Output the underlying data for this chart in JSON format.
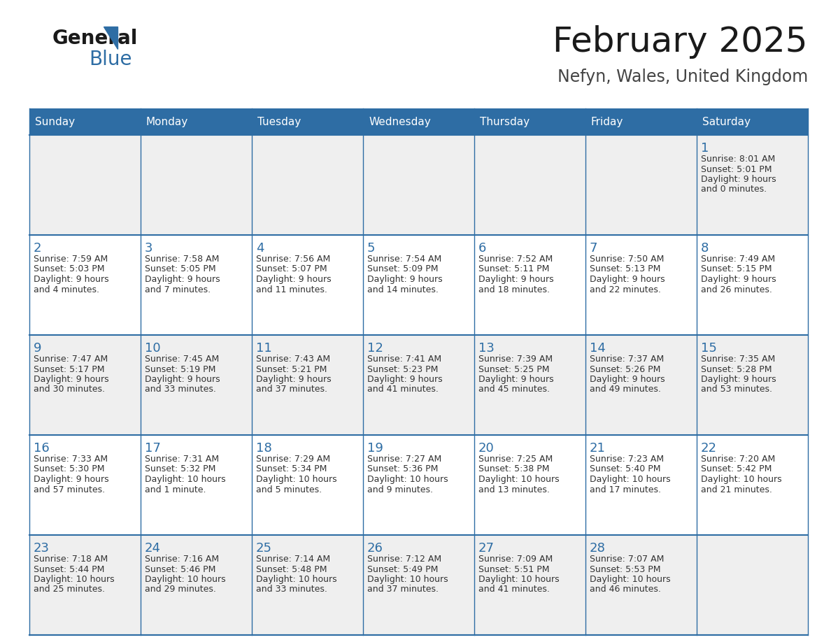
{
  "title": "February 2025",
  "subtitle": "Nefyn, Wales, United Kingdom",
  "header_color": "#2E6DA4",
  "header_text_color": "#FFFFFF",
  "row_bg_odd": "#EFEFEF",
  "row_bg_even": "#FFFFFF",
  "border_color": "#2E6DA4",
  "day_number_color": "#2E6DA4",
  "text_color": "#333333",
  "days_of_week": [
    "Sunday",
    "Monday",
    "Tuesday",
    "Wednesday",
    "Thursday",
    "Friday",
    "Saturday"
  ],
  "weeks": [
    [
      {
        "day": null,
        "sunrise": null,
        "sunset": null,
        "daylight": null
      },
      {
        "day": null,
        "sunrise": null,
        "sunset": null,
        "daylight": null
      },
      {
        "day": null,
        "sunrise": null,
        "sunset": null,
        "daylight": null
      },
      {
        "day": null,
        "sunrise": null,
        "sunset": null,
        "daylight": null
      },
      {
        "day": null,
        "sunrise": null,
        "sunset": null,
        "daylight": null
      },
      {
        "day": null,
        "sunrise": null,
        "sunset": null,
        "daylight": null
      },
      {
        "day": 1,
        "sunrise": "8:01 AM",
        "sunset": "5:01 PM",
        "daylight": "9 hours and 0 minutes."
      }
    ],
    [
      {
        "day": 2,
        "sunrise": "7:59 AM",
        "sunset": "5:03 PM",
        "daylight": "9 hours and 4 minutes."
      },
      {
        "day": 3,
        "sunrise": "7:58 AM",
        "sunset": "5:05 PM",
        "daylight": "9 hours and 7 minutes."
      },
      {
        "day": 4,
        "sunrise": "7:56 AM",
        "sunset": "5:07 PM",
        "daylight": "9 hours and 11 minutes."
      },
      {
        "day": 5,
        "sunrise": "7:54 AM",
        "sunset": "5:09 PM",
        "daylight": "9 hours and 14 minutes."
      },
      {
        "day": 6,
        "sunrise": "7:52 AM",
        "sunset": "5:11 PM",
        "daylight": "9 hours and 18 minutes."
      },
      {
        "day": 7,
        "sunrise": "7:50 AM",
        "sunset": "5:13 PM",
        "daylight": "9 hours and 22 minutes."
      },
      {
        "day": 8,
        "sunrise": "7:49 AM",
        "sunset": "5:15 PM",
        "daylight": "9 hours and 26 minutes."
      }
    ],
    [
      {
        "day": 9,
        "sunrise": "7:47 AM",
        "sunset": "5:17 PM",
        "daylight": "9 hours and 30 minutes."
      },
      {
        "day": 10,
        "sunrise": "7:45 AM",
        "sunset": "5:19 PM",
        "daylight": "9 hours and 33 minutes."
      },
      {
        "day": 11,
        "sunrise": "7:43 AM",
        "sunset": "5:21 PM",
        "daylight": "9 hours and 37 minutes."
      },
      {
        "day": 12,
        "sunrise": "7:41 AM",
        "sunset": "5:23 PM",
        "daylight": "9 hours and 41 minutes."
      },
      {
        "day": 13,
        "sunrise": "7:39 AM",
        "sunset": "5:25 PM",
        "daylight": "9 hours and 45 minutes."
      },
      {
        "day": 14,
        "sunrise": "7:37 AM",
        "sunset": "5:26 PM",
        "daylight": "9 hours and 49 minutes."
      },
      {
        "day": 15,
        "sunrise": "7:35 AM",
        "sunset": "5:28 PM",
        "daylight": "9 hours and 53 minutes."
      }
    ],
    [
      {
        "day": 16,
        "sunrise": "7:33 AM",
        "sunset": "5:30 PM",
        "daylight": "9 hours and 57 minutes."
      },
      {
        "day": 17,
        "sunrise": "7:31 AM",
        "sunset": "5:32 PM",
        "daylight": "10 hours and 1 minute."
      },
      {
        "day": 18,
        "sunrise": "7:29 AM",
        "sunset": "5:34 PM",
        "daylight": "10 hours and 5 minutes."
      },
      {
        "day": 19,
        "sunrise": "7:27 AM",
        "sunset": "5:36 PM",
        "daylight": "10 hours and 9 minutes."
      },
      {
        "day": 20,
        "sunrise": "7:25 AM",
        "sunset": "5:38 PM",
        "daylight": "10 hours and 13 minutes."
      },
      {
        "day": 21,
        "sunrise": "7:23 AM",
        "sunset": "5:40 PM",
        "daylight": "10 hours and 17 minutes."
      },
      {
        "day": 22,
        "sunrise": "7:20 AM",
        "sunset": "5:42 PM",
        "daylight": "10 hours and 21 minutes."
      }
    ],
    [
      {
        "day": 23,
        "sunrise": "7:18 AM",
        "sunset": "5:44 PM",
        "daylight": "10 hours and 25 minutes."
      },
      {
        "day": 24,
        "sunrise": "7:16 AM",
        "sunset": "5:46 PM",
        "daylight": "10 hours and 29 minutes."
      },
      {
        "day": 25,
        "sunrise": "7:14 AM",
        "sunset": "5:48 PM",
        "daylight": "10 hours and 33 minutes."
      },
      {
        "day": 26,
        "sunrise": "7:12 AM",
        "sunset": "5:49 PM",
        "daylight": "10 hours and 37 minutes."
      },
      {
        "day": 27,
        "sunrise": "7:09 AM",
        "sunset": "5:51 PM",
        "daylight": "10 hours and 41 minutes."
      },
      {
        "day": 28,
        "sunrise": "7:07 AM",
        "sunset": "5:53 PM",
        "daylight": "10 hours and 46 minutes."
      },
      {
        "day": null,
        "sunrise": null,
        "sunset": null,
        "daylight": null
      }
    ]
  ]
}
